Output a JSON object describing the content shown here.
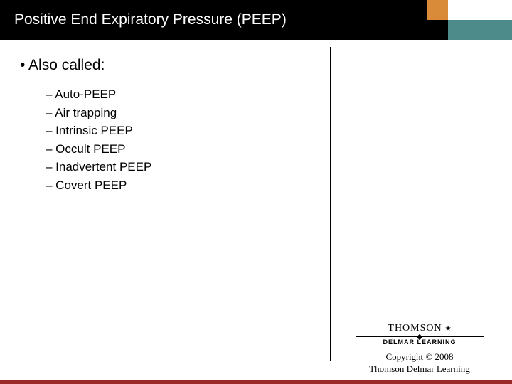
{
  "header": {
    "title": "Positive End Expiratory Pressure (PEEP)"
  },
  "content": {
    "main_bullet": "• Also called:",
    "sub_items": [
      "– Auto-PEEP",
      "– Air trapping",
      "– Intrinsic PEEP",
      "– Occult PEEP",
      "– Inadvertent PEEP",
      "– Covert PEEP"
    ]
  },
  "logo": {
    "brand_top": "THOMSON",
    "brand_bottom": "DELMAR LEARNING"
  },
  "copyright": {
    "line1": "Copyright © 2008",
    "line2": "Thomson Delmar Learning"
  },
  "colors": {
    "header_bg": "#000000",
    "accent_orange": "#d98b3a",
    "accent_teal": "#4d8a8a",
    "bottom_stripe": "#9a2a2a",
    "page_bg": "#ffffff",
    "text": "#000000"
  }
}
